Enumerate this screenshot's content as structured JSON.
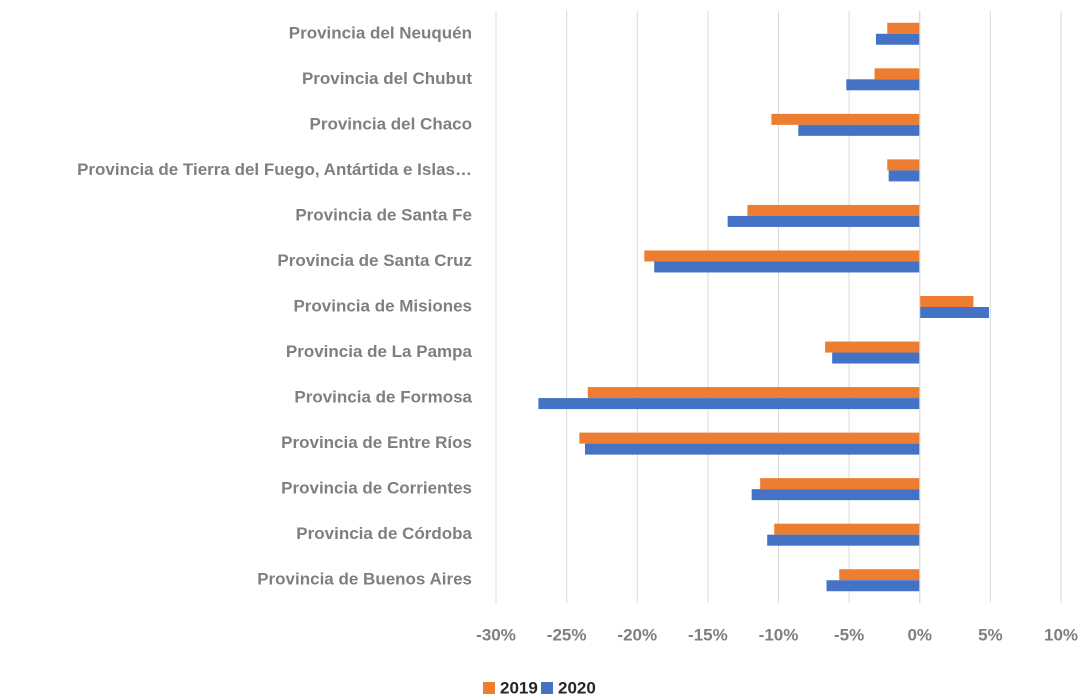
{
  "chart_data": {
    "type": "barh",
    "categories": [
      "Provincia del Neuquén",
      "Provincia del Chubut",
      "Provincia del Chaco",
      "Provincia de Tierra del Fuego, Antártida e Islas…",
      "Provincia de Santa Fe",
      "Provincia de Santa Cruz",
      "Provincia de Misiones",
      "Provincia de La Pampa",
      "Provincia de Formosa",
      "Provincia de Entre Ríos",
      "Provincia de Corrientes",
      "Provincia de Córdoba",
      "Provincia de Buenos Aires"
    ],
    "series": [
      {
        "name": "2019",
        "color": "#ed7d31",
        "values": [
          -2.3,
          -3.2,
          -10.5,
          -2.3,
          -12.2,
          -19.5,
          3.8,
          -6.7,
          -23.5,
          -24.1,
          -11.3,
          -10.3,
          -5.7
        ]
      },
      {
        "name": "2020",
        "color": "#4472c4",
        "values": [
          -3.1,
          -5.2,
          -8.6,
          -2.2,
          -13.6,
          -18.8,
          4.9,
          -6.2,
          -27.0,
          -23.7,
          -11.9,
          -10.8,
          -6.6
        ]
      }
    ],
    "xlim": [
      -30,
      10
    ],
    "xticks": [
      {
        "value": -30,
        "label": "-30%"
      },
      {
        "value": -25,
        "label": "-25%"
      },
      {
        "value": -20,
        "label": "-20%"
      },
      {
        "value": -15,
        "label": "-15%"
      },
      {
        "value": -10,
        "label": "-10%"
      },
      {
        "value": -5,
        "label": "-5%"
      },
      {
        "value": 0,
        "label": "0%"
      },
      {
        "value": 5,
        "label": "5%"
      },
      {
        "value": 10,
        "label": "10%"
      }
    ],
    "grid": true,
    "legend": "bottom"
  }
}
